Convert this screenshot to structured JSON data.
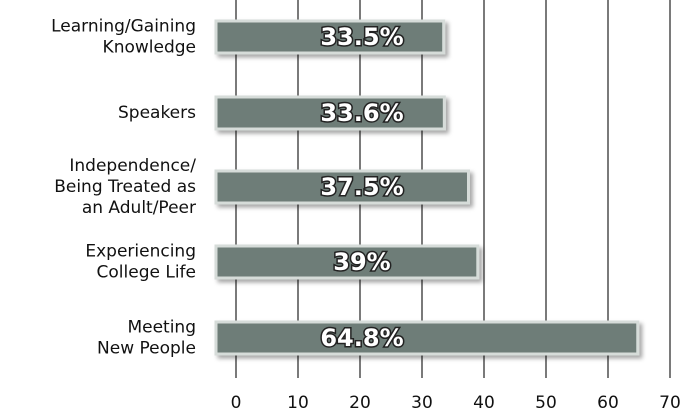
{
  "chart_data": {
    "type": "bar",
    "orientation": "horizontal",
    "categories": [
      [
        "Learning/Gaining",
        "Knowledge"
      ],
      [
        "Speakers"
      ],
      [
        "Independence/",
        "Being Treated as",
        "an Adult/Peer"
      ],
      [
        "Experiencing",
        "College Life"
      ],
      [
        "Meeting",
        "New People"
      ]
    ],
    "values": [
      33.5,
      33.6,
      37.5,
      39,
      64.8
    ],
    "value_labels": [
      "33.5%",
      "33.6%",
      "37.5%",
      "39%",
      "64.8%"
    ],
    "color": "#6e7d78",
    "xlim": [
      0,
      70
    ],
    "xticks": [
      0,
      10,
      20,
      30,
      40,
      50,
      60,
      70
    ],
    "grid": true
  }
}
